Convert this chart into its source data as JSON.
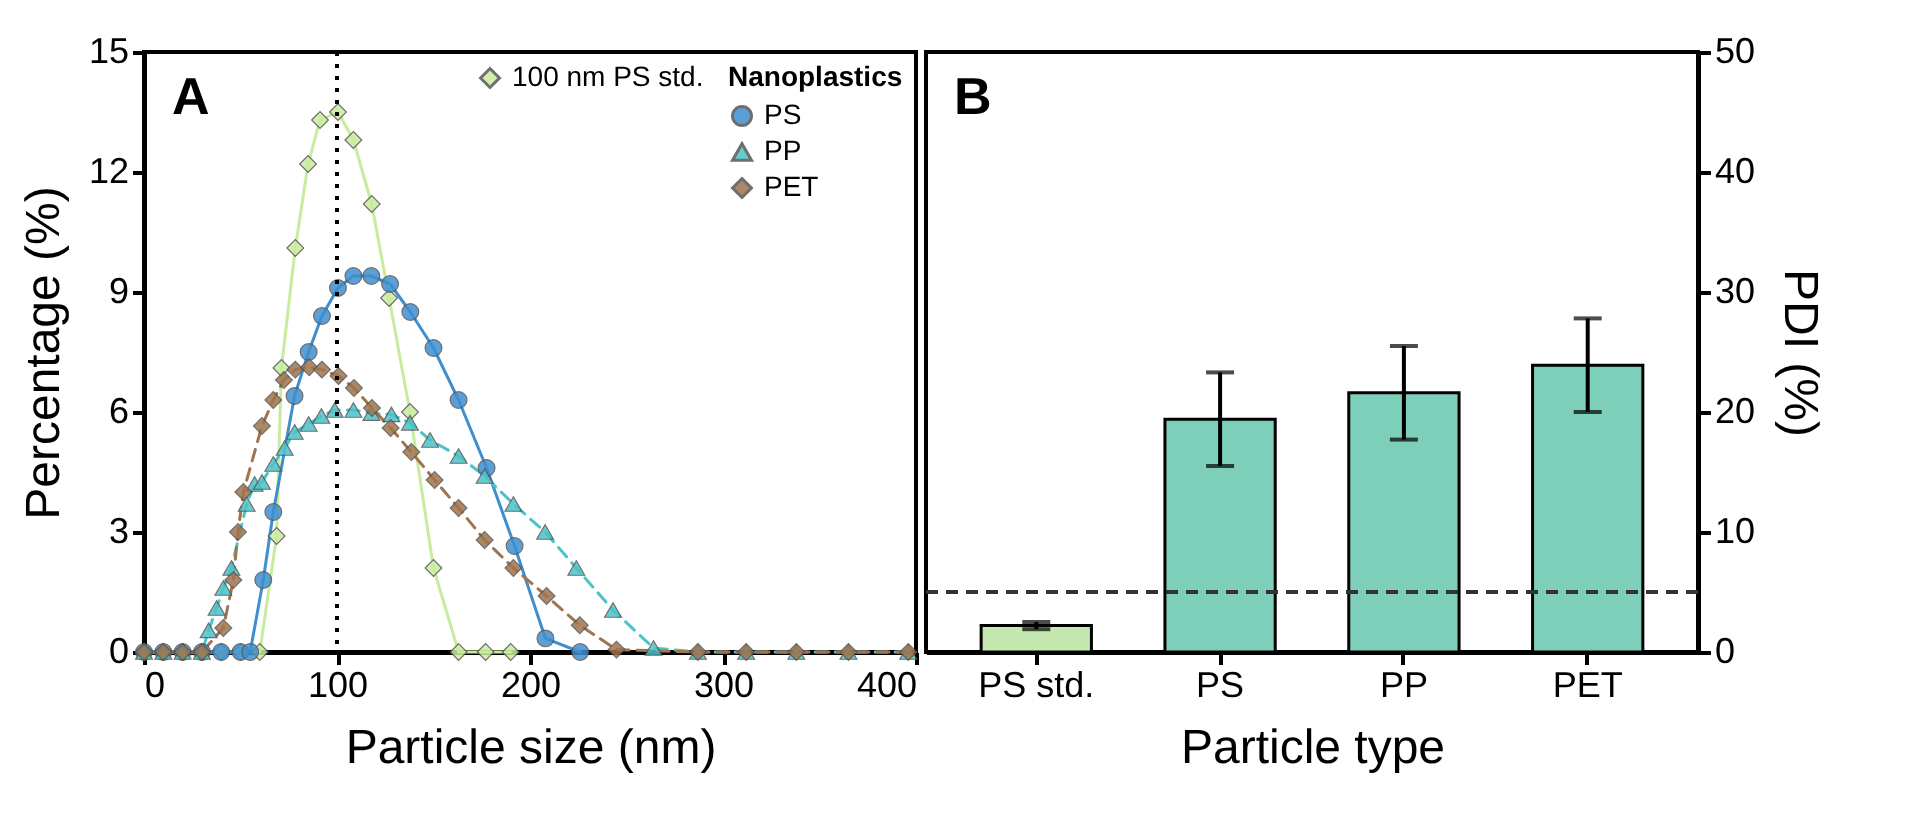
{
  "chart_data": [
    {
      "type": "line",
      "xlabel": "Particle size (nm)",
      "ylabel": "Percentage (%)",
      "xlim": [
        0,
        400
      ],
      "xticks": [
        0,
        100,
        200,
        300,
        400
      ],
      "ylim": [
        0,
        15
      ],
      "yticks": [
        0,
        3,
        6,
        9,
        12,
        15
      ],
      "grid": false,
      "legend": "top right",
      "legend_title": "Nanoplastics",
      "annotations": [
        "A"
      ],
      "ref_lines": [
        {
          "axis": "x",
          "value": 100,
          "line_style": "dotted",
          "color": "#000000"
        }
      ],
      "series": [
        {
          "name": "100 nm PS std.",
          "color": "#c8ec9e",
          "marker": "diamond",
          "line_style": "solid",
          "x": [
            0,
            10,
            20,
            30,
            40,
            50,
            60,
            68.7,
            71.2,
            78.4,
            85,
            91.2,
            100.5,
            108.5,
            118,
            127,
            137.8,
            150,
            163,
            177,
            190
          ],
          "values": [
            0,
            0,
            0,
            0,
            0,
            0,
            0,
            2.9,
            7.1,
            10.1,
            12.2,
            13.3,
            13.5,
            12.8,
            11.2,
            8.85,
            6.0,
            2.1,
            0,
            0,
            0
          ]
        },
        {
          "name": "PS",
          "color": "#3f8fcf",
          "marker": "circle",
          "line_style": "solid",
          "x": [
            0,
            10,
            20,
            30,
            40,
            50,
            55,
            61.8,
            67,
            78,
            85.3,
            92.2,
            100.5,
            108.5,
            117.8,
            127.5,
            138,
            150,
            163,
            177.5,
            192,
            208,
            226
          ],
          "values": [
            0,
            0,
            0,
            0,
            0,
            0,
            0,
            1.8,
            3.5,
            6.4,
            7.5,
            8.4,
            9.1,
            9.4,
            9.4,
            9.2,
            8.5,
            7.6,
            6.3,
            4.6,
            2.65,
            0.34,
            0
          ]
        },
        {
          "name": "PP",
          "color": "#4cc3c8",
          "marker": "triangle",
          "line_style": "dashed",
          "x": [
            0,
            10,
            20,
            30,
            33.5,
            37.6,
            41.1,
            45.3,
            53.2,
            57.3,
            61.1,
            67,
            72.9,
            78.1,
            85.3,
            91.9,
            98.8,
            108.5,
            117.8,
            128.2,
            137.8,
            148.2,
            163,
            176.5,
            191.4,
            207.8,
            224,
            243,
            264,
            287,
            312,
            338,
            365,
            396
          ],
          "values": [
            0,
            0,
            0,
            0,
            0.54,
            1.1,
            1.6,
            2.1,
            3.7,
            4.2,
            4.25,
            4.7,
            5.1,
            5.5,
            5.7,
            5.9,
            6.05,
            6.05,
            5.97,
            5.94,
            5.73,
            5.3,
            4.9,
            4.4,
            3.7,
            3.0,
            2.1,
            1.05,
            0.1,
            0,
            0,
            0,
            0,
            0
          ]
        },
        {
          "name": "PET",
          "color": "#a0744c",
          "marker": "diamond",
          "line_style": "dashed",
          "x": [
            0,
            10,
            20,
            30,
            41.1,
            46.3,
            48.7,
            51.5,
            61.1,
            67,
            72.5,
            78.4,
            85.6,
            92.2,
            100.8,
            108.8,
            118.1,
            127.8,
            138.5,
            150.6,
            163,
            176.5,
            191.4,
            208.6,
            225.8,
            244.8,
            287,
            312,
            338,
            365,
            396
          ],
          "values": [
            0,
            0,
            0,
            0,
            0.6,
            1.8,
            3.0,
            4.0,
            5.65,
            6.3,
            6.8,
            7.06,
            7.12,
            7.06,
            6.9,
            6.6,
            6.1,
            5.6,
            5.0,
            4.3,
            3.6,
            2.8,
            2.1,
            1.4,
            0.67,
            0.06,
            0,
            0,
            0,
            0,
            0
          ]
        }
      ]
    },
    {
      "type": "bar",
      "xlabel": "Particle type",
      "ylabel": "PDI (%)",
      "ylim": [
        0,
        50
      ],
      "yticks": [
        0,
        10,
        20,
        30,
        40,
        50
      ],
      "grid": false,
      "annotations": [
        "B"
      ],
      "categories": [
        "PS std.",
        "PS",
        "PP",
        "PET"
      ],
      "values": [
        2.2,
        19.4,
        21.6,
        23.9
      ],
      "errors": [
        0.3,
        3.9,
        3.9,
        3.9
      ],
      "colors": [
        "#c5e8b0",
        "#7ecfb9",
        "#7ecfb9",
        "#7ecfb9"
      ],
      "ref_lines": [
        {
          "axis": "y",
          "value": 5,
          "line_style": "dashed",
          "color": "#333333"
        }
      ]
    }
  ]
}
